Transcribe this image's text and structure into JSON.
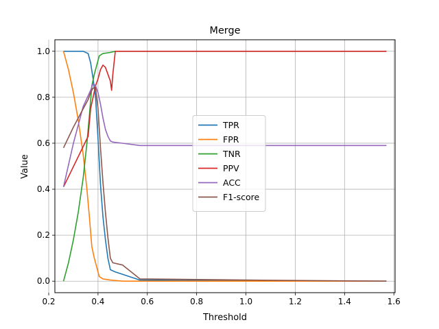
{
  "chart_data": {
    "type": "line",
    "title": "Merge",
    "xlabel": "Threshold",
    "ylabel": "Value",
    "xlim": [
      0.225,
      1.605
    ],
    "ylim": [
      -0.05,
      1.05
    ],
    "xticks": [
      0.2,
      0.4,
      0.6,
      0.8,
      1.0,
      1.2,
      1.4,
      1.6
    ],
    "xtick_labels": [
      "0.2",
      "0.4",
      "0.6",
      "0.8",
      "1.0",
      "1.2",
      "1.4",
      "1.6"
    ],
    "yticks": [
      0.0,
      0.2,
      0.4,
      0.6,
      0.8,
      1.0
    ],
    "ytick_labels": [
      "0.0",
      "0.2",
      "0.4",
      "0.6",
      "0.8",
      "1.0"
    ],
    "grid": true,
    "legend_position": "center",
    "series": [
      {
        "name": "TPR",
        "color": "#1f77b4",
        "x": [
          0.26,
          0.3,
          0.34,
          0.36,
          0.37,
          0.38,
          0.39,
          0.4,
          0.41,
          0.42,
          0.43,
          0.44,
          0.45,
          0.47,
          0.5,
          0.57,
          1.0,
          1.57
        ],
        "y": [
          1.0,
          1.0,
          1.0,
          0.99,
          0.95,
          0.88,
          0.8,
          0.62,
          0.42,
          0.28,
          0.18,
          0.1,
          0.05,
          0.04,
          0.03,
          0.005,
          0.002,
          0.0
        ]
      },
      {
        "name": "FPR",
        "color": "#ff7f0e",
        "x": [
          0.26,
          0.28,
          0.3,
          0.32,
          0.34,
          0.355,
          0.365,
          0.375,
          0.385,
          0.395,
          0.405,
          0.42,
          0.45,
          0.5,
          0.57,
          1.0,
          1.57
        ],
        "y": [
          1.0,
          0.92,
          0.82,
          0.7,
          0.55,
          0.4,
          0.28,
          0.15,
          0.1,
          0.06,
          0.02,
          0.01,
          0.005,
          0.0,
          0.0,
          0.0,
          0.0
        ]
      },
      {
        "name": "TNR",
        "color": "#2ca02c",
        "x": [
          0.26,
          0.28,
          0.3,
          0.32,
          0.34,
          0.355,
          0.365,
          0.375,
          0.385,
          0.395,
          0.405,
          0.42,
          0.45,
          0.47,
          0.5,
          1.0,
          1.57
        ],
        "y": [
          0.0,
          0.08,
          0.18,
          0.3,
          0.45,
          0.6,
          0.72,
          0.85,
          0.9,
          0.94,
          0.98,
          0.99,
          0.995,
          1.0,
          1.0,
          1.0,
          1.0
        ]
      },
      {
        "name": "PPV",
        "color": "#d62728",
        "x": [
          0.26,
          0.36,
          0.37,
          0.38,
          0.39,
          0.4,
          0.41,
          0.42,
          0.43,
          0.44,
          0.45,
          0.455,
          0.46,
          0.465,
          0.47,
          0.5,
          1.0,
          1.57
        ],
        "y": [
          0.41,
          0.63,
          0.75,
          0.8,
          0.85,
          0.88,
          0.92,
          0.94,
          0.93,
          0.9,
          0.87,
          0.83,
          0.9,
          0.95,
          1.0,
          1.0,
          1.0,
          1.0
        ]
      },
      {
        "name": "ACC",
        "color": "#9467bd",
        "x": [
          0.26,
          0.3,
          0.34,
          0.37,
          0.38,
          0.39,
          0.4,
          0.41,
          0.42,
          0.43,
          0.44,
          0.45,
          0.46,
          0.5,
          0.57,
          1.0,
          1.57
        ],
        "y": [
          0.41,
          0.6,
          0.76,
          0.83,
          0.86,
          0.85,
          0.82,
          0.77,
          0.71,
          0.66,
          0.63,
          0.61,
          0.605,
          0.6,
          0.59,
          0.59,
          0.59
        ]
      },
      {
        "name": "F1-score",
        "color": "#8c564b",
        "x": [
          0.26,
          0.3,
          0.34,
          0.36,
          0.37,
          0.38,
          0.39,
          0.4,
          0.41,
          0.42,
          0.43,
          0.44,
          0.45,
          0.46,
          0.5,
          0.57,
          1.0,
          1.57
        ],
        "y": [
          0.58,
          0.67,
          0.75,
          0.79,
          0.82,
          0.84,
          0.84,
          0.75,
          0.58,
          0.43,
          0.3,
          0.19,
          0.1,
          0.08,
          0.07,
          0.01,
          0.005,
          0.0
        ]
      }
    ]
  }
}
